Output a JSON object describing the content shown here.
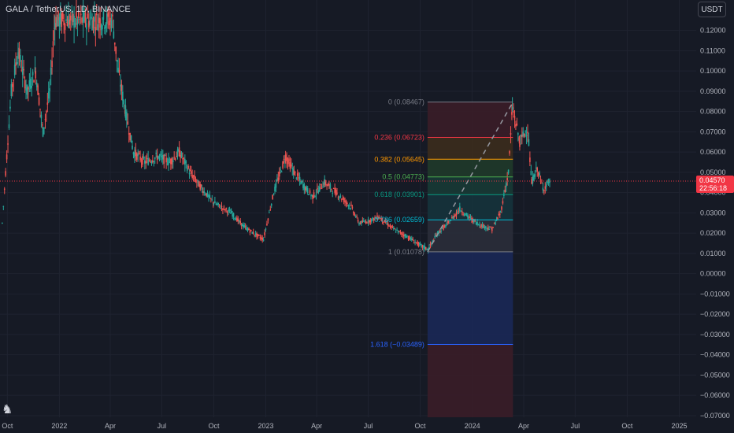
{
  "header": {
    "symbol_line": "GALA / TetherUS, 1D, BINANCE",
    "currency": "USDT"
  },
  "logo_icon": "tradingview-logo-icon",
  "colors": {
    "background": "#161a25",
    "grid": "#1f2330",
    "up": "#26a69a",
    "down": "#ef5350",
    "price_line": "#f23645",
    "fib_upper_fill": "#4a1d26",
    "fib_lower_fill": "#1c2a5a",
    "fib_ext_fill": "#4a1d26"
  },
  "chart_data": {
    "type": "candlestick",
    "title": "GALA / TetherUS, 1D, BINANCE",
    "x_ticks": [
      "Oct",
      "2022",
      "Apr",
      "Jul",
      "Oct",
      "2023",
      "Apr",
      "Jul",
      "Oct",
      "2024",
      "Apr",
      "Jul",
      "Oct",
      "2025"
    ],
    "y_ticks": [
      "0.12000",
      "0.11000",
      "0.10000",
      "0.09000",
      "0.08000",
      "0.07000",
      "0.06000",
      "0.05000",
      "0.04000",
      "0.03000",
      "0.02000",
      "0.01000",
      "0.00000",
      "−0.01000",
      "−0.02000",
      "−0.03000",
      "−0.04000",
      "−0.05000",
      "−0.06000",
      "−0.07000"
    ],
    "ylim": [
      -0.0708,
      0.135
    ],
    "x_range": [
      "2021-09-18",
      "2025-01-31"
    ],
    "grid": true,
    "last_price": "0.04570",
    "countdown": "22:56:18",
    "price_path": [
      {
        "date": "2021-09-22",
        "price": 0.025
      },
      {
        "date": "2021-09-28",
        "price": 0.05
      },
      {
        "date": "2021-10-08",
        "price": 0.09
      },
      {
        "date": "2021-10-20",
        "price": 0.11
      },
      {
        "date": "2021-11-05",
        "price": 0.09
      },
      {
        "date": "2021-11-20",
        "price": 0.1
      },
      {
        "date": "2021-12-03",
        "price": 0.07
      },
      {
        "date": "2021-12-15",
        "price": 0.09
      },
      {
        "date": "2021-12-24",
        "price": 0.125
      },
      {
        "date": "2022-04-05",
        "price": 0.125
      },
      {
        "date": "2022-04-15",
        "price": 0.1
      },
      {
        "date": "2022-04-28",
        "price": 0.08
      },
      {
        "date": "2022-05-12",
        "price": 0.06
      },
      {
        "date": "2022-06-01",
        "price": 0.055
      },
      {
        "date": "2022-06-25",
        "price": 0.058
      },
      {
        "date": "2022-07-15",
        "price": 0.055
      },
      {
        "date": "2022-08-01",
        "price": 0.06
      },
      {
        "date": "2022-08-20",
        "price": 0.05
      },
      {
        "date": "2022-09-10",
        "price": 0.042
      },
      {
        "date": "2022-10-01",
        "price": 0.035
      },
      {
        "date": "2022-11-01",
        "price": 0.03
      },
      {
        "date": "2022-11-20",
        "price": 0.024
      },
      {
        "date": "2022-12-10",
        "price": 0.02
      },
      {
        "date": "2022-12-28",
        "price": 0.017
      },
      {
        "date": "2023-01-15",
        "price": 0.04
      },
      {
        "date": "2023-02-05",
        "price": 0.058
      },
      {
        "date": "2023-02-20",
        "price": 0.05
      },
      {
        "date": "2023-03-10",
        "price": 0.043
      },
      {
        "date": "2023-03-25",
        "price": 0.038
      },
      {
        "date": "2023-04-15",
        "price": 0.045
      },
      {
        "date": "2023-05-05",
        "price": 0.04
      },
      {
        "date": "2023-06-01",
        "price": 0.033
      },
      {
        "date": "2023-06-15",
        "price": 0.025
      },
      {
        "date": "2023-07-01",
        "price": 0.026
      },
      {
        "date": "2023-07-20",
        "price": 0.028
      },
      {
        "date": "2023-08-15",
        "price": 0.022
      },
      {
        "date": "2023-09-10",
        "price": 0.018
      },
      {
        "date": "2023-10-01",
        "price": 0.014
      },
      {
        "date": "2023-10-15",
        "price": 0.012
      },
      {
        "date": "2023-11-01",
        "price": 0.02
      },
      {
        "date": "2023-11-20",
        "price": 0.025
      },
      {
        "date": "2023-12-10",
        "price": 0.032
      },
      {
        "date": "2023-12-25",
        "price": 0.028
      },
      {
        "date": "2024-01-15",
        "price": 0.024
      },
      {
        "date": "2024-02-05",
        "price": 0.022
      },
      {
        "date": "2024-02-20",
        "price": 0.03
      },
      {
        "date": "2024-03-05",
        "price": 0.05
      },
      {
        "date": "2024-03-12",
        "price": 0.082
      },
      {
        "date": "2024-03-25",
        "price": 0.065
      },
      {
        "date": "2024-04-08",
        "price": 0.072
      },
      {
        "date": "2024-04-15",
        "price": 0.045
      },
      {
        "date": "2024-04-25",
        "price": 0.052
      },
      {
        "date": "2024-05-05",
        "price": 0.042
      },
      {
        "date": "2024-05-18",
        "price": 0.046
      }
    ],
    "fib_retracement": {
      "start_date": "2023-10-14",
      "end_date": "2024-03-13",
      "levels": [
        {
          "ratio": "0",
          "price": 0.08467,
          "label": "0 (0.08467)",
          "color": "#787b86"
        },
        {
          "ratio": "0.236",
          "price": 0.06723,
          "label": "0.236 (0.06723)",
          "color": "#f23645"
        },
        {
          "ratio": "0.382",
          "price": 0.05645,
          "label": "0.382 (0.05645)",
          "color": "#ff9800"
        },
        {
          "ratio": "0.5",
          "price": 0.04773,
          "label": "0.5 (0.04773)",
          "color": "#4caf50"
        },
        {
          "ratio": "0.618",
          "price": 0.03901,
          "label": "0.618 (0.03901)",
          "color": "#089981"
        },
        {
          "ratio": "0.786",
          "price": 0.02659,
          "label": "0.786 (0.02659)",
          "color": "#00bcd4"
        },
        {
          "ratio": "1",
          "price": 0.01078,
          "label": "1 (0.01078)",
          "color": "#787b86"
        },
        {
          "ratio": "1.618",
          "price": -0.03489,
          "label": "1.618 (−0.03489)",
          "color": "#2962ff"
        }
      ]
    }
  }
}
